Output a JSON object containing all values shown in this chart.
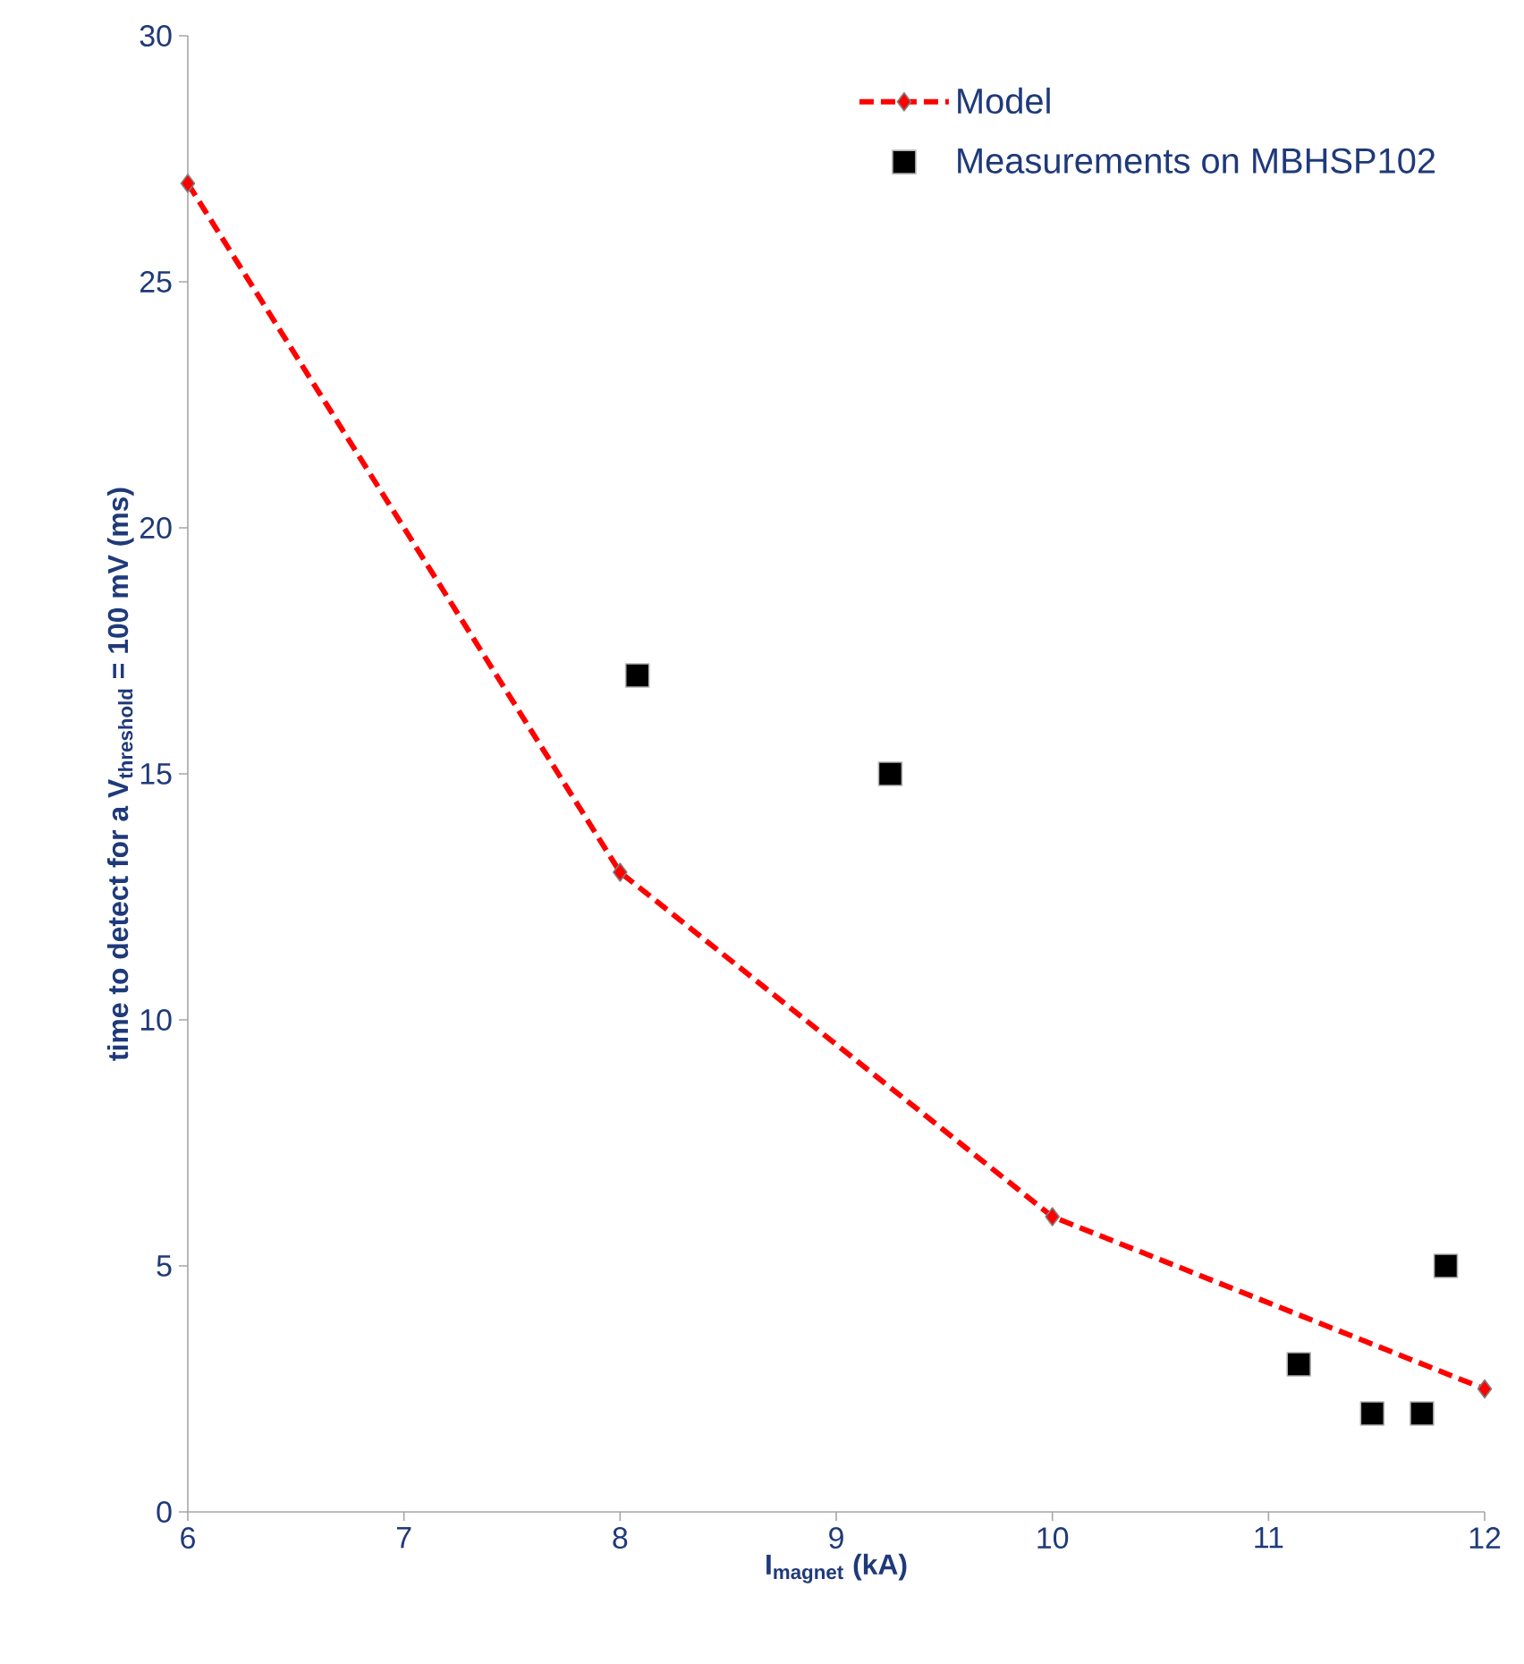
{
  "chart_data": {
    "type": "scatter",
    "xlabel": "\\text{I}_{\\text{magnet}}\\text{ (kA)}",
    "ylabel": "\\text{time to detect for a V}_{\\text{threshold}}\\text{ = 100 mV (ms)}",
    "xlim": [
      6,
      12
    ],
    "ylim": [
      0,
      30
    ],
    "xticks": [
      6,
      7,
      8,
      9,
      10,
      11,
      12
    ],
    "yticks": [
      0,
      5,
      10,
      15,
      20,
      25,
      30
    ],
    "grid": false,
    "legend": "top right",
    "series": [
      {
        "name": "Model",
        "type": "line",
        "color": "#ff0000",
        "marker": "diamond",
        "line_style": "dashed",
        "x": [
          6,
          8,
          10,
          12
        ],
        "values": [
          27,
          13,
          6,
          2.5
        ]
      },
      {
        "name": "Measurements on MBHSP102",
        "color": "#000000",
        "marker": "square",
        "x": [
          8.08,
          9.25,
          11.14,
          11.48,
          11.71,
          11.82
        ],
        "values": [
          17,
          15,
          3,
          2,
          2,
          5
        ]
      }
    ]
  }
}
